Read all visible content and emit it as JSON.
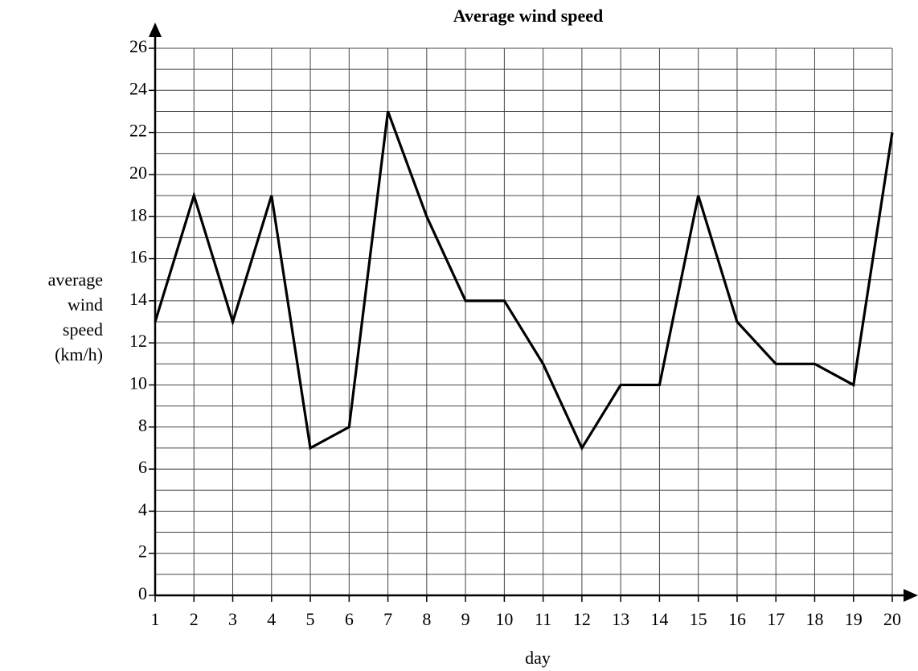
{
  "chart_data": {
    "type": "line",
    "title": "Average wind speed",
    "xlabel": "day",
    "ylabel": [
      "average",
      "wind",
      "speed",
      "(km/h)"
    ],
    "x": [
      1,
      2,
      3,
      4,
      5,
      6,
      7,
      8,
      9,
      10,
      11,
      12,
      13,
      14,
      15,
      16,
      17,
      18,
      19,
      20
    ],
    "series": [
      {
        "name": "average wind speed",
        "color": "#000000",
        "values": [
          13,
          19,
          13,
          19,
          7,
          8,
          23,
          18,
          14,
          14,
          11,
          7,
          10,
          10,
          19,
          13,
          11,
          11,
          10,
          22
        ]
      }
    ],
    "xlim": [
      1,
      20
    ],
    "xticks": [
      1,
      2,
      3,
      4,
      5,
      6,
      7,
      8,
      9,
      10,
      11,
      12,
      13,
      14,
      15,
      16,
      17,
      18,
      19,
      20
    ],
    "ylim": [
      0,
      26
    ],
    "yticks": [
      0,
      2,
      4,
      6,
      8,
      10,
      12,
      14,
      16,
      18,
      20,
      22,
      24,
      26
    ],
    "minor_yticks": [
      1,
      3,
      5,
      7,
      9,
      11,
      13,
      15,
      17,
      19,
      21,
      23,
      25
    ],
    "grid": true
  }
}
